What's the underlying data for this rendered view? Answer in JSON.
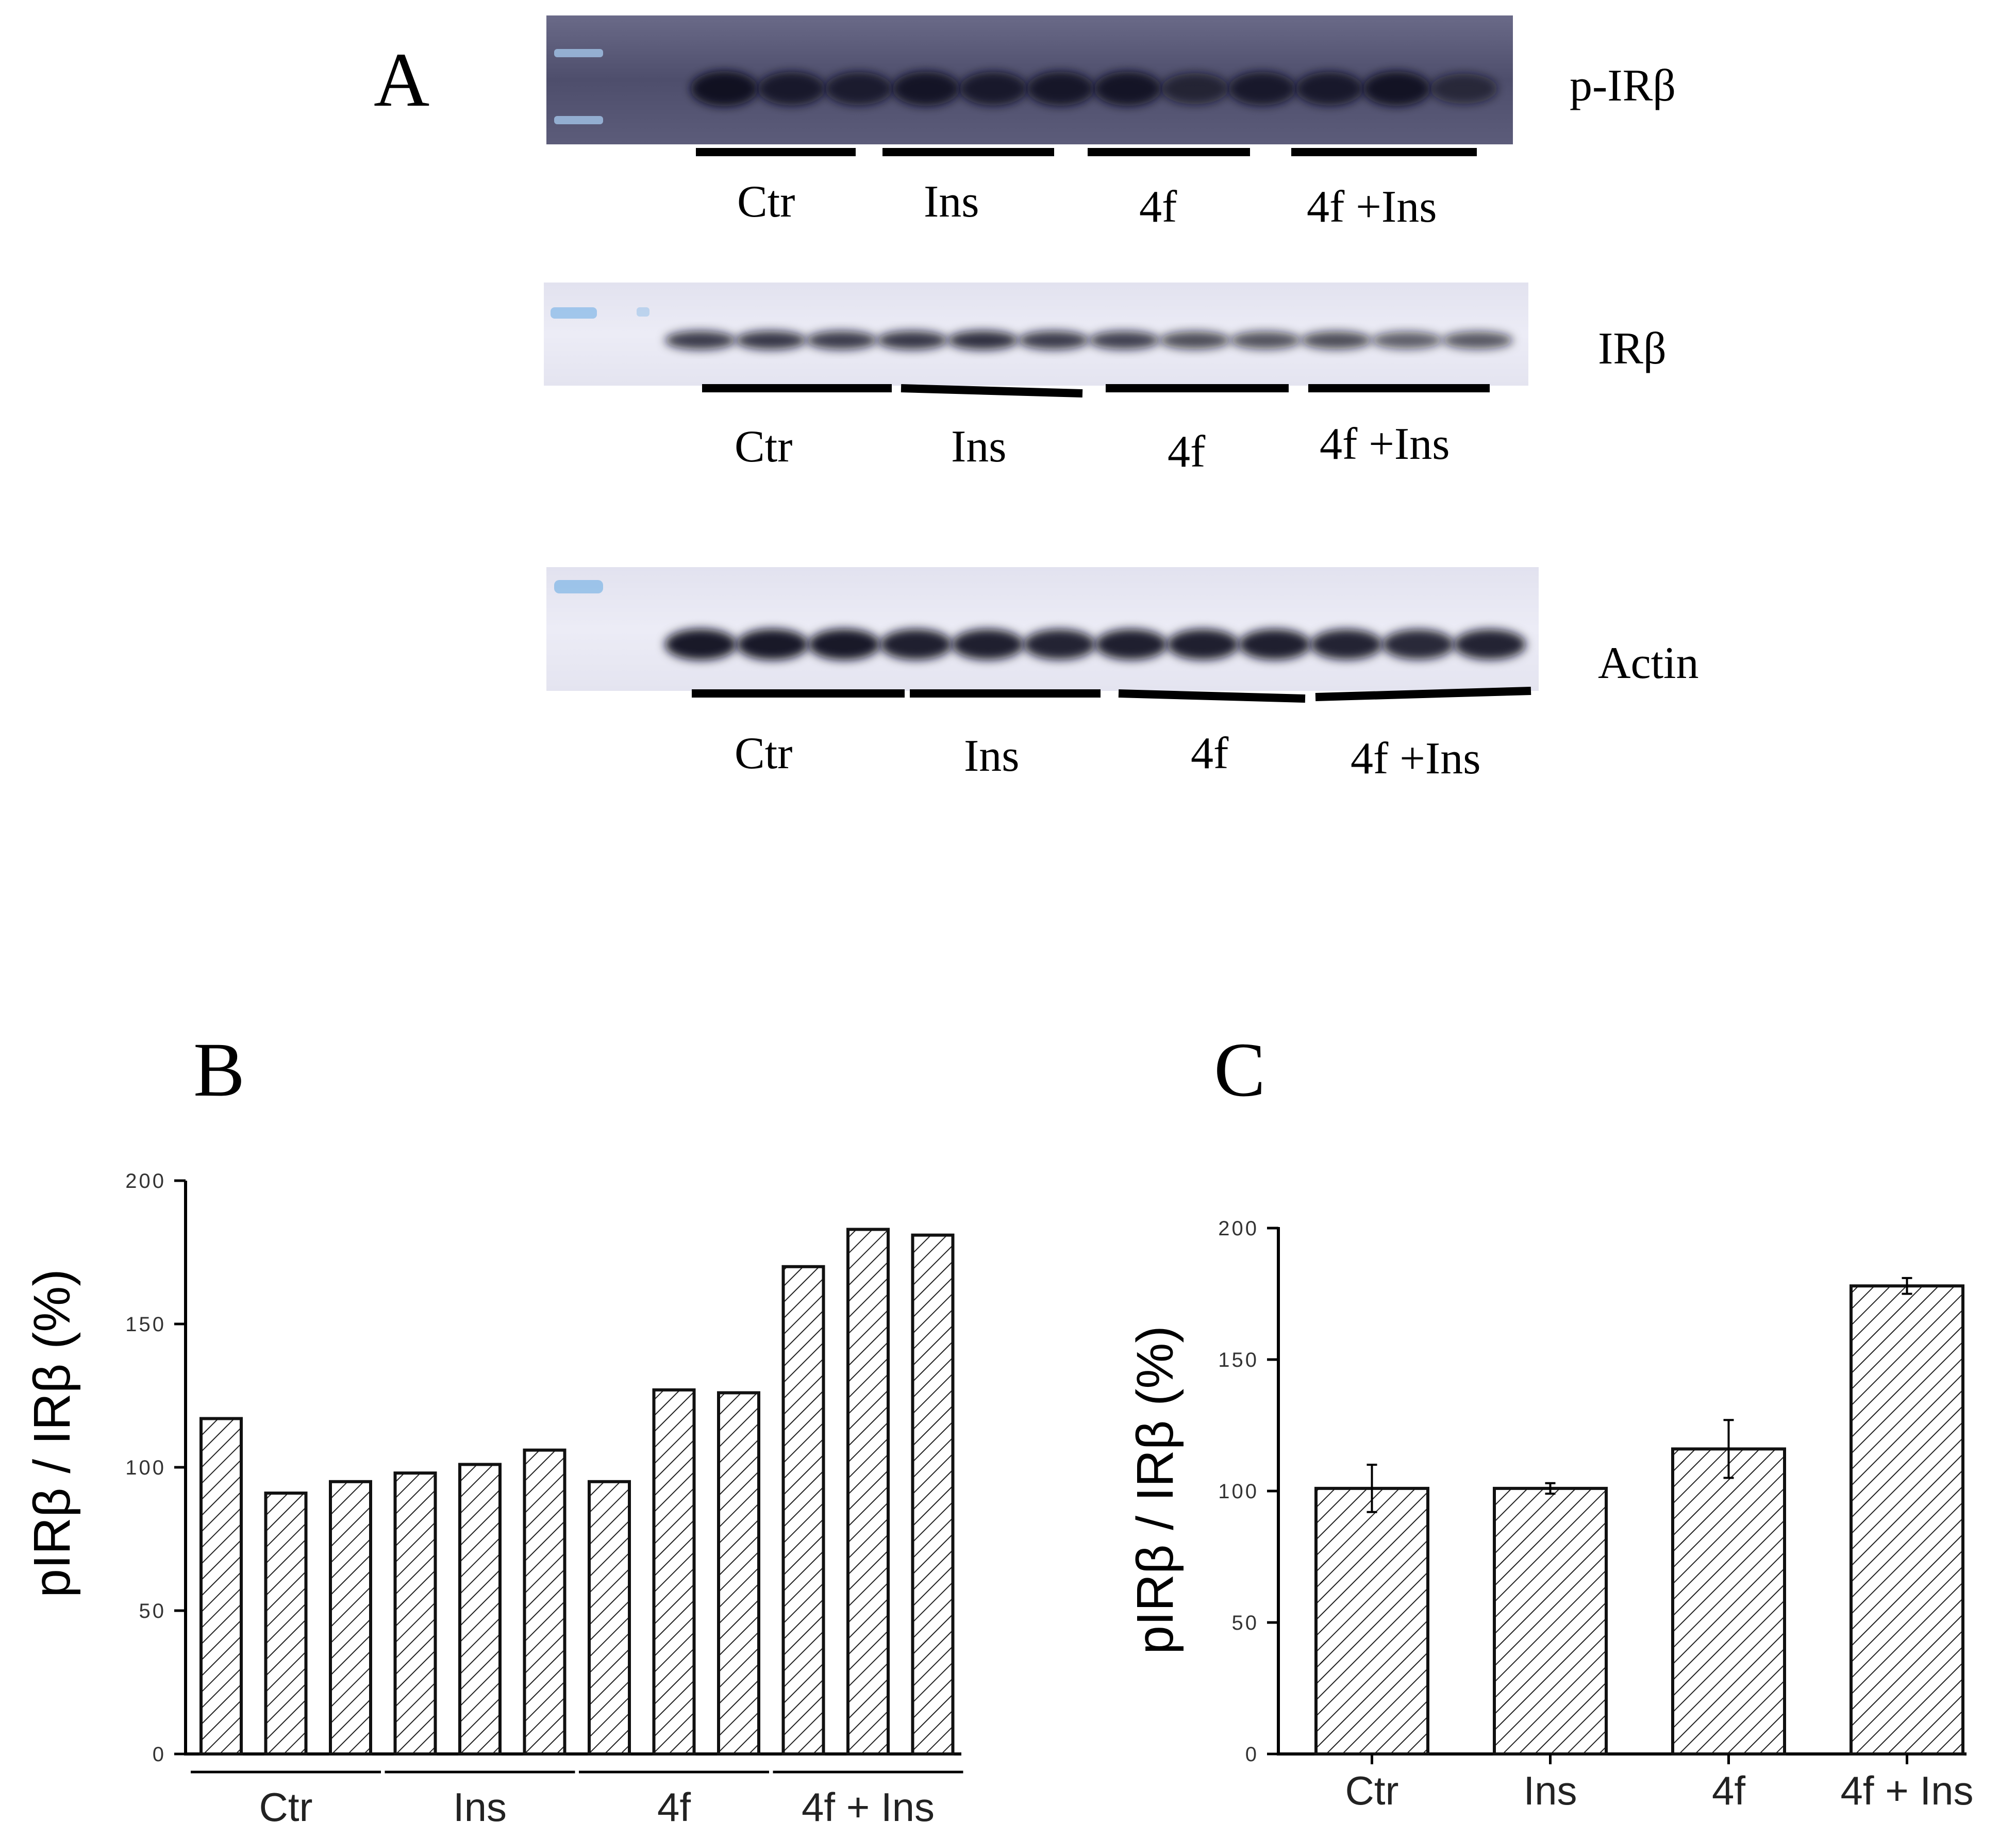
{
  "panel_a": {
    "letter": "A",
    "blots": [
      {
        "protein": "p-IRβ",
        "groups": [
          "Ctr",
          "Ins",
          "4f",
          "4f +Ins"
        ]
      },
      {
        "protein": "IRβ",
        "groups": [
          "Ctr",
          "Ins",
          "4f",
          "4f +Ins"
        ]
      },
      {
        "protein": "Actin",
        "groups": [
          "Ctr",
          "Ins",
          "4f",
          "4f +Ins"
        ]
      }
    ],
    "lane_intensity": {
      "p-IRβ": [
        0.95,
        0.85,
        0.82,
        0.9,
        0.85,
        0.88,
        0.9,
        0.7,
        0.85,
        0.85,
        0.92,
        0.65
      ],
      "IRβ": [
        0.8,
        0.82,
        0.8,
        0.82,
        0.85,
        0.8,
        0.78,
        0.72,
        0.7,
        0.72,
        0.65,
        0.68
      ],
      "Actin": [
        0.95,
        0.95,
        0.95,
        0.92,
        0.92,
        0.9,
        0.92,
        0.92,
        0.92,
        0.9,
        0.88,
        0.9
      ]
    },
    "colors": {
      "blot_dark": "#5a5a78",
      "blot_light": "#eeeef6",
      "band": "#0a0a1e",
      "marker": "#6aa8e0"
    }
  },
  "chart_data": [
    {
      "panel": "B",
      "type": "bar",
      "ylabel": "pIRβ / IRβ (%)",
      "ylim": [
        0,
        200
      ],
      "yticks": [
        "0",
        "50",
        "100",
        "150",
        "200"
      ],
      "groups": [
        "Ctr",
        "Ins",
        "4f",
        "4f + Ins"
      ],
      "bars_per_group": 3,
      "values": [
        117,
        91,
        95,
        98,
        101,
        106,
        95,
        127,
        126,
        170,
        183,
        181
      ],
      "hatch": "diagonal"
    },
    {
      "panel": "C",
      "type": "bar",
      "ylabel": "pIRβ / IRβ (%)",
      "ylim": [
        0,
        200
      ],
      "yticks": [
        "0",
        "50",
        "100",
        "150",
        "200"
      ],
      "categories": [
        "Ctr",
        "Ins",
        "4f",
        "4f + Ins"
      ],
      "values": [
        101,
        101,
        116,
        178
      ],
      "errors": [
        9,
        2,
        11,
        3
      ],
      "hatch": "diagonal"
    }
  ]
}
